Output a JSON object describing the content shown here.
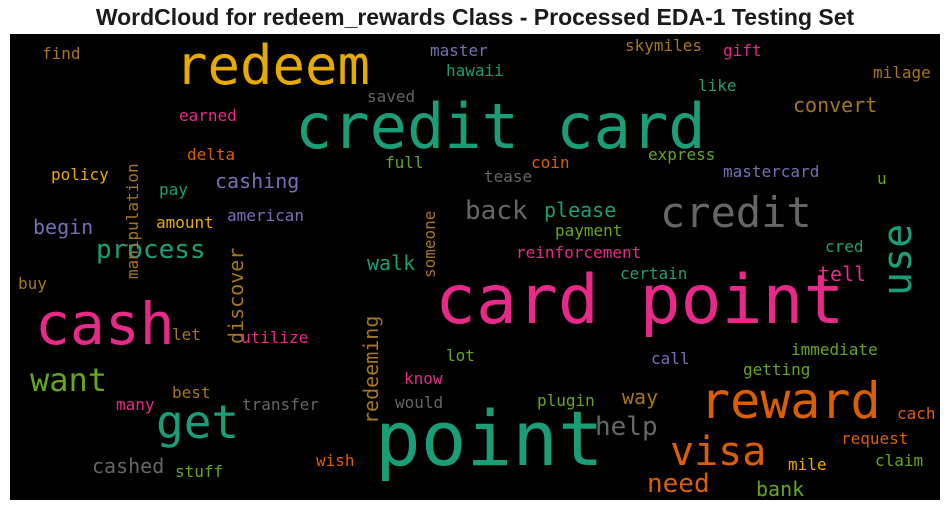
{
  "chart_data": {
    "type": "wordcloud",
    "title": "WordCloud for redeem_rewards Class - Processed EDA-1 Testing Set",
    "background": "#000000",
    "colors": {
      "green": "#1b9e77",
      "orange": "#d95f02",
      "purple": "#7570b3",
      "pink": "#e7298a",
      "lime": "#66a61e",
      "gold": "#e6ab02",
      "brown": "#a6761d",
      "gray": "#666666"
    },
    "words": [
      {
        "text": "redeem",
        "color": "gold"
      },
      {
        "text": "credit card",
        "color": "green"
      },
      {
        "text": "credit",
        "color": "gray"
      },
      {
        "text": "card point",
        "color": "pink"
      },
      {
        "text": "cash",
        "color": "pink"
      },
      {
        "text": "point",
        "color": "green"
      },
      {
        "text": "reward",
        "color": "orange"
      },
      {
        "text": "use",
        "color": "green"
      },
      {
        "text": "get",
        "color": "green"
      },
      {
        "text": "visa",
        "color": "orange"
      },
      {
        "text": "want",
        "color": "lime"
      },
      {
        "text": "process",
        "color": "green"
      },
      {
        "text": "back",
        "color": "gray"
      },
      {
        "text": "help",
        "color": "gray"
      },
      {
        "text": "need",
        "color": "orange"
      },
      {
        "text": "cashing",
        "color": "purple"
      },
      {
        "text": "please",
        "color": "green"
      },
      {
        "text": "begin",
        "color": "purple"
      },
      {
        "text": "walk",
        "color": "green"
      },
      {
        "text": "convert",
        "color": "brown"
      },
      {
        "text": "cashed",
        "color": "gray"
      },
      {
        "text": "bank",
        "color": "lime"
      },
      {
        "text": "way",
        "color": "brown"
      },
      {
        "text": "tell",
        "color": "pink"
      },
      {
        "text": "discover",
        "color": "brown"
      },
      {
        "text": "redeeming",
        "color": "brown"
      },
      {
        "text": "manipulation",
        "color": "brown"
      },
      {
        "text": "master",
        "color": "purple"
      },
      {
        "text": "hawaii",
        "color": "green"
      },
      {
        "text": "skymiles",
        "color": "brown"
      },
      {
        "text": "gift",
        "color": "pink"
      },
      {
        "text": "like",
        "color": "green"
      },
      {
        "text": "milage",
        "color": "brown"
      },
      {
        "text": "find",
        "color": "brown"
      },
      {
        "text": "saved",
        "color": "gray"
      },
      {
        "text": "earned",
        "color": "pink"
      },
      {
        "text": "delta",
        "color": "orange"
      },
      {
        "text": "full",
        "color": "lime"
      },
      {
        "text": "coin",
        "color": "orange"
      },
      {
        "text": "express",
        "color": "lime"
      },
      {
        "text": "mastercard",
        "color": "purple"
      },
      {
        "text": "policy",
        "color": "gold"
      },
      {
        "text": "tease",
        "color": "gray"
      },
      {
        "text": "pay",
        "color": "green"
      },
      {
        "text": "u",
        "color": "lime"
      },
      {
        "text": "amount",
        "color": "gold"
      },
      {
        "text": "american",
        "color": "purple"
      },
      {
        "text": "someone",
        "color": "brown"
      },
      {
        "text": "payment",
        "color": "lime"
      },
      {
        "text": "cred",
        "color": "green"
      },
      {
        "text": "reinforcement",
        "color": "pink"
      },
      {
        "text": "certain",
        "color": "green"
      },
      {
        "text": "buy",
        "color": "brown"
      },
      {
        "text": "let",
        "color": "brown"
      },
      {
        "text": "utilize",
        "color": "pink"
      },
      {
        "text": "lot",
        "color": "lime"
      },
      {
        "text": "call",
        "color": "purple"
      },
      {
        "text": "immediate",
        "color": "lime"
      },
      {
        "text": "know",
        "color": "pink"
      },
      {
        "text": "getting",
        "color": "lime"
      },
      {
        "text": "best",
        "color": "brown"
      },
      {
        "text": "many",
        "color": "pink"
      },
      {
        "text": "transfer",
        "color": "gray"
      },
      {
        "text": "would",
        "color": "gray"
      },
      {
        "text": "plugin",
        "color": "lime"
      },
      {
        "text": "cach",
        "color": "orange"
      },
      {
        "text": "request",
        "color": "orange"
      },
      {
        "text": "claim",
        "color": "lime"
      },
      {
        "text": "mile",
        "color": "gold"
      },
      {
        "text": "wish",
        "color": "orange"
      },
      {
        "text": "stuff",
        "color": "lime"
      }
    ]
  }
}
